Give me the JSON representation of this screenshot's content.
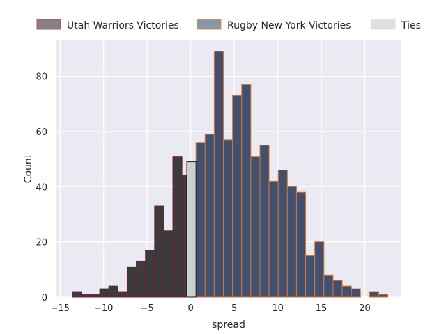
{
  "chart_data": {
    "type": "bar",
    "xlabel": "spread",
    "ylabel": "Count",
    "xlim": [
      -15.5,
      24.2
    ],
    "ylim": [
      0,
      93
    ],
    "xticks": [
      -15,
      -10,
      -5,
      0,
      5,
      10,
      15,
      20
    ],
    "yticks": [
      0,
      20,
      40,
      60,
      80
    ],
    "grid": true,
    "bin_width": 1.05,
    "legend_position": "top",
    "colors": {
      "plot_background": "#eaeaf2",
      "grid": "#ffffff",
      "utah_fill": "#3b3b3b",
      "utah_edge": "#7b1a3a",
      "rny_fill": "#3f5170",
      "rny_edge": "#e8702a",
      "ties_fill": "#cfcfcf",
      "ties_edge": "#1a1a1a"
    },
    "series": [
      {
        "name": "Utah Warriors Victories",
        "bin_starts": [
          -13.6,
          -12.55,
          -11.5,
          -10.45,
          -9.4,
          -8.35,
          -7.3,
          -6.25,
          -5.2,
          -4.15,
          -3.1,
          -2.05,
          -1.0
        ],
        "values": [
          2,
          1,
          1,
          3,
          4,
          2,
          11,
          13,
          17,
          33,
          24,
          51,
          44
        ]
      },
      {
        "name": "Rugby New York Victories",
        "bin_starts": [
          0.6,
          1.65,
          2.7,
          3.75,
          4.8,
          5.85,
          6.9,
          7.95,
          9.0,
          10.05,
          11.1,
          12.15,
          13.2,
          14.25,
          15.3,
          16.35,
          17.4,
          18.45,
          20.55,
          21.6
        ],
        "values": [
          56,
          59,
          89,
          57,
          73,
          77,
          51,
          55,
          42,
          46,
          40,
          38,
          15,
          20,
          8,
          6,
          4,
          3,
          2,
          1
        ]
      },
      {
        "name": "Ties",
        "bin_starts": [
          -0.45
        ],
        "values": [
          49
        ]
      }
    ]
  }
}
